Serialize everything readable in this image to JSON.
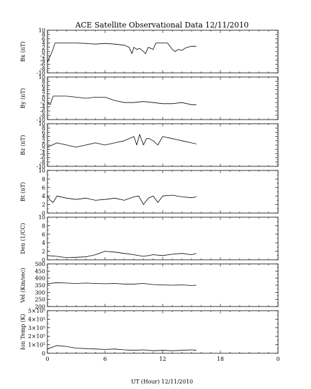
{
  "title": "ACE Satellite Observational Data   12/11/2010",
  "chart_data": {
    "type": "line",
    "title": "ACE Satellite Observational Data   12/11/2010",
    "xlabel": "UT (Hour)  12/11/2010",
    "xlim": [
      0,
      24
    ],
    "x_ticks": [
      "0",
      "6",
      "12",
      "18",
      "0"
    ],
    "panels": [
      {
        "key": "bx",
        "ylabel": "Bx (nT)",
        "ylim": [
          -10,
          10
        ],
        "y_ticks": [
          "10",
          "8",
          "6",
          "4",
          "2",
          "0",
          "-2",
          "-4",
          "-6",
          "-8",
          "-10"
        ],
        "series": [
          {
            "x": [
              0,
              0.2,
              0.5,
              0.8,
              1,
              2,
              3,
              4,
              5,
              6,
              7,
              8,
              8.5,
              8.8,
              9,
              9.3,
              9.6,
              10,
              10.2,
              10.5,
              11,
              11.3,
              11.6,
              12,
              12.5,
              13,
              13.3,
              13.6,
              14,
              14.3,
              14.6,
              15,
              15.5
            ],
            "y": [
              -5,
              -3,
              0,
              4,
              4,
              4,
              4,
              3.8,
              3.5,
              3.8,
              3.5,
              3,
              2,
              -1,
              2,
              1,
              1.5,
              0,
              -1,
              2,
              1,
              4,
              4,
              4,
              4,
              1,
              0,
              1,
              0.5,
              1.5,
              2,
              2.5,
              2.5
            ]
          }
        ]
      },
      {
        "key": "by",
        "ylabel": "By (nT)",
        "ylim": [
          -10,
          10
        ],
        "y_ticks": [
          "10",
          "8",
          "6",
          "4",
          "2",
          "0",
          "-2",
          "-4",
          "-6",
          "-8",
          "-10"
        ],
        "series": [
          {
            "x": [
              0,
              0.3,
              0.6,
              1,
              2,
              3,
              4,
              5,
              6,
              7,
              8,
              9,
              10,
              11,
              12,
              13,
              14,
              15,
              15.5
            ],
            "y": [
              -2,
              -3,
              1,
              1,
              1,
              0.5,
              0,
              0.5,
              0.5,
              -1,
              -2,
              -2,
              -1.5,
              -2,
              -2.5,
              -2.5,
              -2,
              -3,
              -3
            ]
          }
        ]
      },
      {
        "key": "bz",
        "ylabel": "Bz (nT)",
        "ylim": [
          -10,
          10
        ],
        "y_ticks": [
          "10",
          "8",
          "6",
          "4",
          "2",
          "0",
          "-2",
          "-4",
          "-6",
          "-8",
          "-10"
        ],
        "series": [
          {
            "x": [
              0,
              0.5,
              1,
              2,
              3,
              4,
              5,
              6,
              7,
              8,
              8.5,
              9,
              9.3,
              9.6,
              10,
              10.3,
              10.6,
              11,
              11.5,
              12,
              13,
              14,
              15,
              15.5
            ],
            "y": [
              -1,
              0,
              1,
              0,
              -1,
              0,
              1,
              0,
              1,
              2,
              3,
              4,
              0,
              5,
              0,
              3,
              3,
              2,
              0,
              4,
              3,
              2,
              1,
              0.5
            ]
          }
        ]
      },
      {
        "key": "bt",
        "ylabel": "Bt (nT)",
        "ylim": [
          0,
          10
        ],
        "y_ticks": [
          "10",
          "8",
          "6",
          "4",
          "2",
          "0"
        ],
        "series": [
          {
            "x": [
              0,
              0.3,
              0.6,
              1,
              2,
              3,
              4,
              5,
              6,
              7,
              8,
              9,
              9.5,
              10,
              10.5,
              11,
              11.5,
              12,
              13,
              14,
              15,
              15.5
            ],
            "y": [
              4,
              3,
              2.5,
              4,
              3.5,
              3.2,
              3.5,
              3,
              3.2,
              3.5,
              3,
              3.8,
              4,
              2,
              3.5,
              4,
              2.5,
              4,
              4.2,
              3.8,
              3.6,
              3.8
            ]
          }
        ]
      },
      {
        "key": "den",
        "ylabel": "Den (1/CC)",
        "ylim": [
          0,
          10
        ],
        "y_ticks": [
          "10",
          "8",
          "6",
          "4",
          "2",
          "0"
        ],
        "series": [
          {
            "x": [
              0,
              1,
              2,
              3,
              4,
              5,
              6,
              7,
              8,
              9,
              10,
              11,
              12,
              13,
              14,
              15,
              15.5
            ],
            "y": [
              1,
              0.8,
              0.5,
              0.6,
              0.7,
              1.2,
              2,
              1.8,
              1.5,
              1.2,
              0.8,
              1.2,
              1,
              1.3,
              1.5,
              1.2,
              1.5
            ]
          }
        ]
      },
      {
        "key": "vel",
        "ylabel": "Vel (Km/sec)",
        "ylim": [
          200,
          500
        ],
        "y_ticks": [
          "500",
          "450",
          "400",
          "350",
          "300",
          "250",
          "200"
        ],
        "series": [
          {
            "x": [
              0,
              1,
              2,
              3,
              4,
              5,
              6,
              7,
              8,
              9,
              10,
              11,
              12,
              13,
              14,
              15,
              15.5
            ],
            "y": [
              360,
              368,
              365,
              362,
              365,
              362,
              360,
              362,
              358,
              358,
              362,
              355,
              352,
              350,
              352,
              348,
              350
            ]
          }
        ]
      },
      {
        "key": "temp",
        "ylabel": "Ion Temp (K)",
        "ylim": [
          0,
          500000
        ],
        "y_ticks": [
          "5×10⁵",
          "4×10⁵",
          "3×10⁵",
          "2×10⁵",
          "1×10⁵",
          "0"
        ],
        "series": [
          {
            "x": [
              0,
              0.5,
              1,
              2,
              3,
              4,
              5,
              6,
              7,
              8,
              9,
              10,
              11,
              12,
              13,
              14,
              15,
              15.5
            ],
            "y": [
              50000,
              70000,
              90000,
              80000,
              60000,
              55000,
              50000,
              45000,
              50000,
              40000,
              35000,
              40000,
              30000,
              35000,
              30000,
              35000,
              40000,
              35000
            ]
          }
        ]
      }
    ]
  }
}
